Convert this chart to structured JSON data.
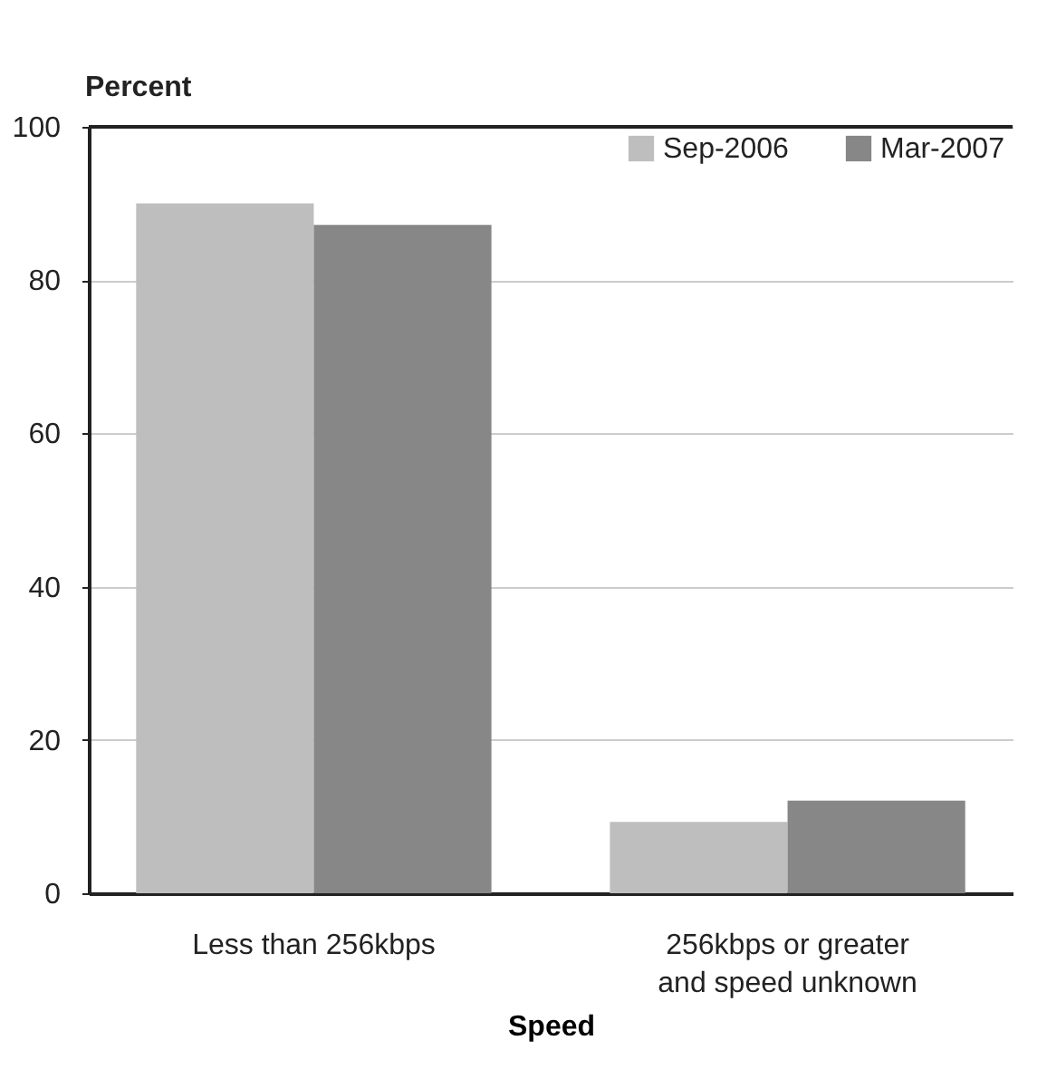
{
  "chart_data": {
    "type": "bar",
    "xlabel": "Speed",
    "ylabel": "Percent",
    "categories": [
      "Less than 256kbps",
      "256kbps or greater and speed unknown"
    ],
    "series": [
      {
        "name": "Sep-2006",
        "color": "#bebebe",
        "values": [
          90,
          9.3
        ]
      },
      {
        "name": "Mar-2007",
        "color": "#878787",
        "values": [
          87.2,
          12.1
        ]
      }
    ],
    "ylim": [
      0,
      100
    ],
    "yticks": [
      0,
      20,
      40,
      60,
      80,
      100
    ],
    "grid": "y",
    "legend": "top right"
  }
}
